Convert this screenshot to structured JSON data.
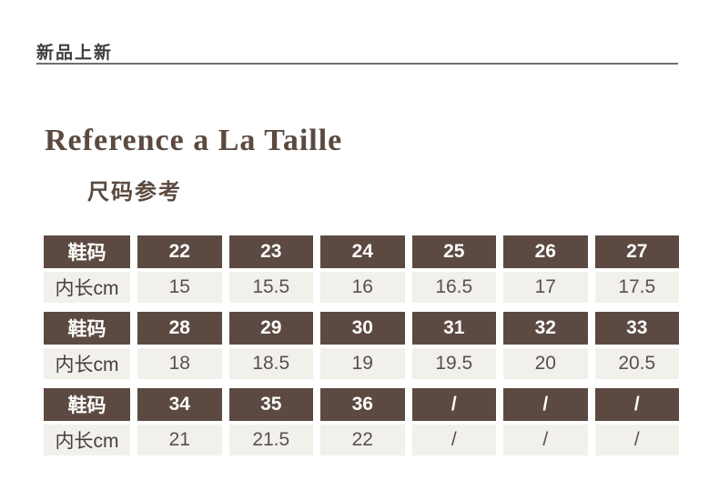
{
  "banner": {
    "label": "新品上新"
  },
  "title": "Reference a La Taille",
  "subtitle": "尺码参考",
  "colors": {
    "header_brown": "#5c4a42",
    "light_cell": "#f1f0ea",
    "title_text": "#5b4a40",
    "banner_text": "#3e3e3e",
    "rule_gray": "#6f6f6f"
  },
  "chart_data": {
    "type": "table",
    "title": "尺码参考 (Reference a La Taille)",
    "row_groups": [
      {
        "header": {
          "label": "鞋码",
          "values": [
            "22",
            "23",
            "24",
            "25",
            "26",
            "27"
          ]
        },
        "body": {
          "label": "内长cm",
          "values": [
            "15",
            "15.5",
            "16",
            "16.5",
            "17",
            "17.5"
          ]
        }
      },
      {
        "header": {
          "label": "鞋码",
          "values": [
            "28",
            "29",
            "30",
            "31",
            "32",
            "33"
          ]
        },
        "body": {
          "label": "内长cm",
          "values": [
            "18",
            "18.5",
            "19",
            "19.5",
            "20",
            "20.5"
          ]
        }
      },
      {
        "header": {
          "label": "鞋码",
          "values": [
            "34",
            "35",
            "36",
            "/",
            "/",
            "/"
          ]
        },
        "body": {
          "label": "内长cm",
          "values": [
            "21",
            "21.5",
            "22",
            "/",
            "/",
            "/"
          ]
        }
      }
    ]
  }
}
